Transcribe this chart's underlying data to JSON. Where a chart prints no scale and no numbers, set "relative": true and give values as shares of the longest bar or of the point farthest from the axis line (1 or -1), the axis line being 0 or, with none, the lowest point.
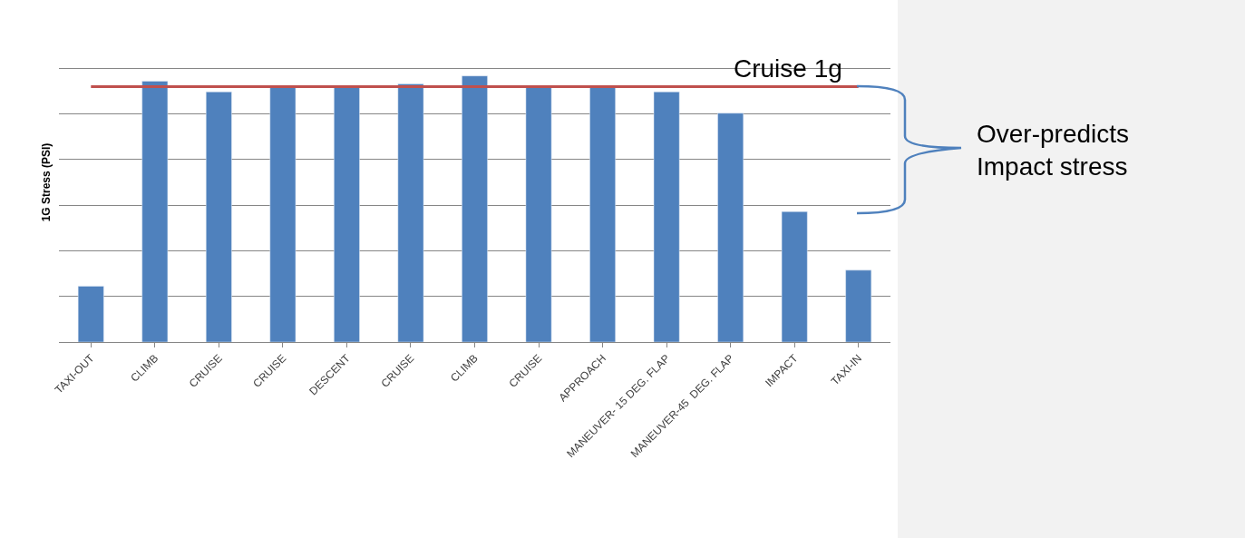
{
  "chart_data": {
    "type": "bar",
    "ylabel": "1G Stress (PSI)",
    "relative": true,
    "grid": "y",
    "categories": [
      "TAXI-OUT",
      "CLIMB",
      "CRUISE",
      "CRUISE",
      "DESCENT",
      "CRUISE",
      "CLIMB",
      "CRUISE",
      "APPROACH",
      "MANEUVER- 15 DEG. FLAP",
      "MANEUVER-45  DEG. FLAP",
      "IMPACT",
      "TAXI-IN"
    ],
    "series": [
      {
        "color": "#4f81bd",
        "values": [
          0.21,
          0.98,
          0.94,
          0.96,
          0.96,
          0.97,
          1,
          0.96,
          0.96,
          0.94,
          0.86,
          0.49,
          0.27
        ]
      }
    ],
    "ref_lines": [
      {
        "axis": "y",
        "value": 0.96,
        "label": "Cruise 1g",
        "color": "#c0504d"
      }
    ],
    "annotations": [
      "Over-predicts\nImpact stress"
    ]
  }
}
